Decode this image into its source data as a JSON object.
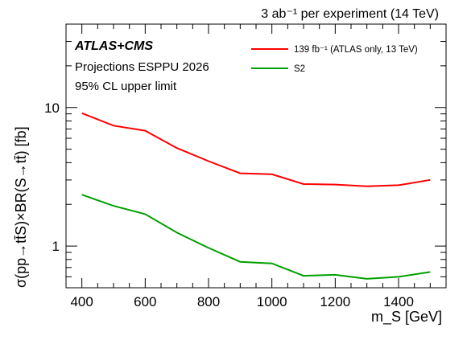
{
  "chart_data": {
    "type": "line",
    "title": "3 ab⁻¹ per experiment (14 TeV)",
    "xlabel": "m_S [GeV]",
    "ylabel": "σ(pp→tt̄S)×BR(S→tt̄) [fb]",
    "yscale": "log",
    "xlim": [
      350,
      1550
    ],
    "ylim": [
      0.5,
      40
    ],
    "x_ticks": [
      400,
      600,
      800,
      1000,
      1200,
      1400
    ],
    "y_ticks": [
      1,
      10
    ],
    "x_tick_labels": [
      "400",
      "600",
      "800",
      "1000",
      "1200",
      "1400"
    ],
    "y_tick_labels": [
      "1",
      "10"
    ],
    "annotations": [
      "ATLAS+CMS",
      "Projections ESPPU 2026",
      "95% CL upper limit"
    ],
    "legend_position": "top-right",
    "x": [
      400,
      500,
      600,
      700,
      800,
      900,
      1000,
      1100,
      1200,
      1300,
      1400,
      1500
    ],
    "series": [
      {
        "name": "139 fb⁻¹ (ATLAS only, 13 TeV)",
        "color": "#ff0000",
        "values": [
          9.1,
          7.4,
          6.8,
          5.1,
          4.1,
          3.35,
          3.3,
          2.8,
          2.78,
          2.7,
          2.75,
          3.0
        ]
      },
      {
        "name": "S2",
        "color": "#00a000",
        "values": [
          2.35,
          1.95,
          1.7,
          1.25,
          0.97,
          0.77,
          0.75,
          0.61,
          0.62,
          0.58,
          0.6,
          0.65
        ]
      }
    ]
  }
}
